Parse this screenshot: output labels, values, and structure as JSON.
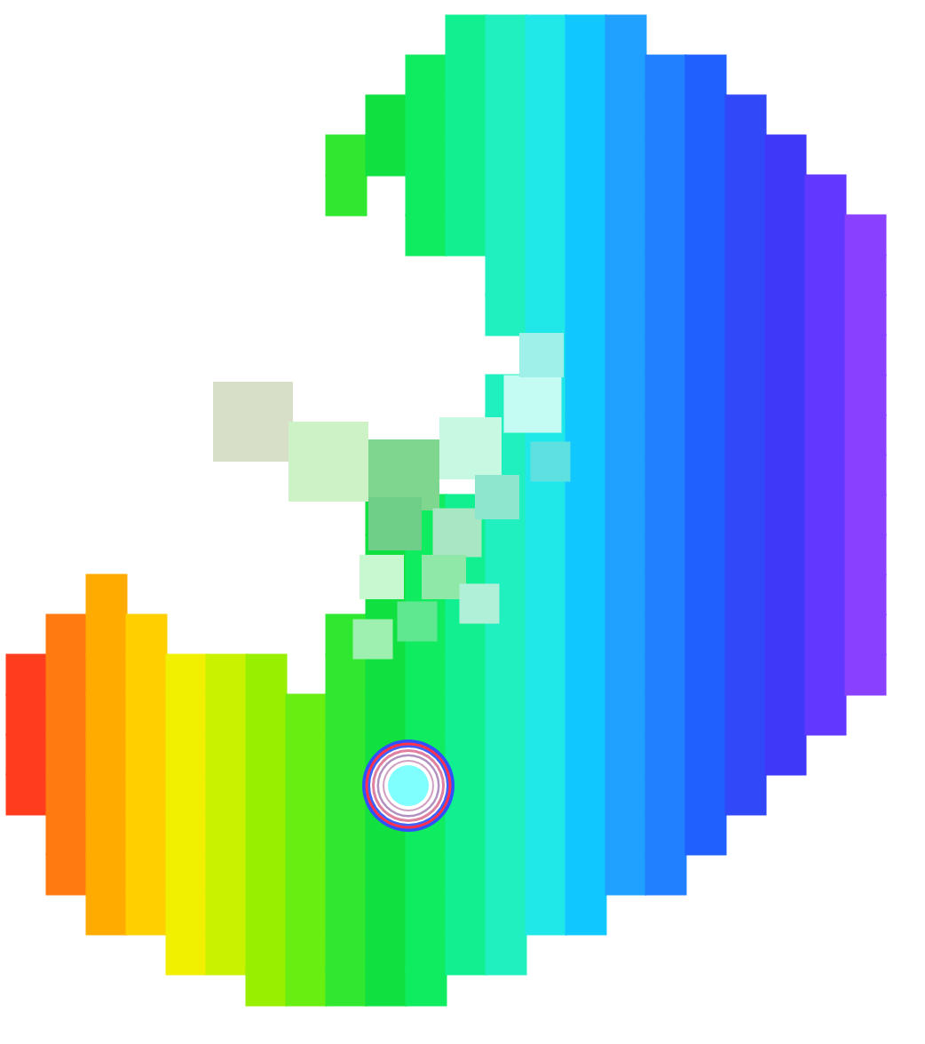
{
  "chart_data": {
    "type": "scatter",
    "marker": "square",
    "tick_labels": false,
    "grid": false,
    "xlim": [
      0,
      1042
    ],
    "ylim": [
      1176,
      0
    ],
    "series": [
      {
        "color": "#ff3c1e",
        "x": [
          30,
          30,
          30,
          30
        ],
        "y": [
          760,
          805,
          850,
          895
        ]
      },
      {
        "color": "#ff7a10",
        "x": [
          75,
          75,
          75,
          75,
          75,
          75,
          75
        ],
        "y": [
          715,
          760,
          805,
          850,
          895,
          940,
          985
        ]
      },
      {
        "color": "#ffab00",
        "x": [
          120,
          120,
          120,
          120,
          120,
          120,
          120,
          120,
          120
        ],
        "y": [
          670,
          715,
          760,
          805,
          850,
          895,
          940,
          985,
          1030
        ]
      },
      {
        "color": "#ffd000",
        "x": [
          165,
          165,
          165,
          165,
          165,
          165,
          165,
          165
        ],
        "y": [
          715,
          760,
          805,
          850,
          895,
          940,
          985,
          1030
        ]
      },
      {
        "color": "#f0f000",
        "x": [
          210,
          210,
          210,
          210,
          210,
          210,
          210,
          210
        ],
        "y": [
          760,
          805,
          850,
          895,
          940,
          985,
          1030,
          1075
        ]
      },
      {
        "color": "#c8f200",
        "x": [
          255,
          255,
          255,
          255,
          255,
          255,
          255,
          255
        ],
        "y": [
          760,
          805,
          850,
          895,
          940,
          985,
          1030,
          1075
        ]
      },
      {
        "color": "#98f000",
        "x": [
          300,
          300,
          300,
          300,
          300,
          300,
          300,
          300,
          300
        ],
        "y": [
          760,
          805,
          850,
          895,
          940,
          985,
          1030,
          1075,
          1110
        ]
      },
      {
        "color": "#68ee10",
        "x": [
          345,
          345,
          345,
          345,
          345,
          345,
          345,
          345
        ],
        "y": [
          805,
          850,
          895,
          940,
          985,
          1030,
          1075,
          1110
        ]
      },
      {
        "color": "#30e830",
        "x": [
          390,
          390,
          390,
          390,
          390,
          390,
          390,
          390,
          390,
          390,
          390,
          390
        ],
        "y": [
          175,
          220,
          715,
          760,
          805,
          850,
          895,
          940,
          985,
          1030,
          1075,
          1110
        ]
      },
      {
        "color": "#10e040",
        "x": [
          435,
          435,
          435,
          435,
          435,
          435,
          435,
          435,
          435,
          435,
          435,
          435,
          435,
          435,
          435
        ],
        "y": [
          130,
          175,
          580,
          625,
          670,
          715,
          760,
          805,
          850,
          895,
          940,
          985,
          1030,
          1075,
          1110
        ]
      },
      {
        "color": "#10ec60",
        "x": [
          480,
          480,
          480,
          480,
          480,
          480,
          480,
          480,
          480,
          480,
          480,
          480,
          480,
          480,
          480,
          480,
          480,
          480
        ],
        "y": [
          85,
          130,
          175,
          220,
          265,
          580,
          625,
          670,
          715,
          760,
          805,
          850,
          895,
          940,
          985,
          1030,
          1075,
          1110
        ]
      },
      {
        "color": "#10f090",
        "x": [
          525,
          525,
          525,
          525,
          525,
          525,
          525,
          525,
          525,
          525,
          525,
          525,
          525,
          525,
          525,
          525,
          525,
          525
        ],
        "y": [
          40,
          85,
          130,
          175,
          220,
          265,
          580,
          625,
          670,
          715,
          760,
          805,
          850,
          895,
          940,
          985,
          1030,
          1075
        ]
      },
      {
        "color": "#20f0c0",
        "x": [
          570,
          570,
          570,
          570,
          570,
          570,
          570,
          570,
          570,
          570,
          570,
          570,
          570,
          570,
          570,
          570,
          570,
          570,
          570,
          570,
          570,
          570,
          570
        ],
        "y": [
          40,
          85,
          130,
          175,
          220,
          265,
          310,
          355,
          445,
          490,
          535,
          580,
          625,
          670,
          715,
          760,
          805,
          850,
          895,
          940,
          985,
          1030,
          1075
        ]
      },
      {
        "color": "#20e8e8",
        "x": [
          615,
          615,
          615,
          615,
          615,
          615,
          615,
          615,
          615,
          615,
          615,
          615,
          615,
          615,
          615,
          615,
          615,
          615,
          615,
          615,
          615,
          615,
          615
        ],
        "y": [
          40,
          85,
          130,
          175,
          220,
          265,
          310,
          355,
          400,
          445,
          490,
          535,
          580,
          625,
          670,
          715,
          760,
          805,
          850,
          895,
          940,
          985,
          1030
        ]
      },
      {
        "color": "#10c8ff",
        "x": [
          660,
          660,
          660,
          660,
          660,
          660,
          660,
          660,
          660,
          660,
          660,
          660,
          660,
          660,
          660,
          660,
          660,
          660,
          660,
          660,
          660,
          660,
          660
        ],
        "y": [
          40,
          85,
          130,
          175,
          220,
          265,
          310,
          355,
          400,
          445,
          490,
          535,
          580,
          625,
          670,
          715,
          760,
          805,
          850,
          895,
          940,
          985,
          1030
        ]
      },
      {
        "color": "#20a0ff",
        "x": [
          705,
          705,
          705,
          705,
          705,
          705,
          705,
          705,
          705,
          705,
          705,
          705,
          705,
          705,
          705,
          705,
          705,
          705,
          705,
          705,
          705,
          705
        ],
        "y": [
          40,
          85,
          130,
          175,
          220,
          265,
          310,
          355,
          400,
          445,
          490,
          535,
          580,
          625,
          670,
          715,
          760,
          805,
          850,
          895,
          940,
          985
        ]
      },
      {
        "color": "#2080ff",
        "x": [
          750,
          750,
          750,
          750,
          750,
          750,
          750,
          750,
          750,
          750,
          750,
          750,
          750,
          750,
          750,
          750,
          750,
          750,
          750,
          750,
          750
        ],
        "y": [
          85,
          130,
          175,
          220,
          265,
          310,
          355,
          400,
          445,
          490,
          535,
          580,
          625,
          670,
          715,
          760,
          805,
          850,
          895,
          940,
          985
        ]
      },
      {
        "color": "#2060ff",
        "x": [
          795,
          795,
          795,
          795,
          795,
          795,
          795,
          795,
          795,
          795,
          795,
          795,
          795,
          795,
          795,
          795,
          795,
          795,
          795,
          795
        ],
        "y": [
          85,
          130,
          175,
          220,
          265,
          310,
          355,
          400,
          445,
          490,
          535,
          580,
          625,
          670,
          715,
          760,
          805,
          850,
          895,
          940
        ]
      },
      {
        "color": "#3048f8",
        "x": [
          840,
          840,
          840,
          840,
          840,
          840,
          840,
          840,
          840,
          840,
          840,
          840,
          840,
          840,
          840,
          840,
          840,
          840
        ],
        "y": [
          130,
          175,
          220,
          265,
          310,
          355,
          400,
          445,
          490,
          535,
          580,
          625,
          670,
          715,
          760,
          805,
          850,
          895
        ]
      },
      {
        "color": "#4038f8",
        "x": [
          885,
          885,
          885,
          885,
          885,
          885,
          885,
          885,
          885,
          885,
          885,
          885,
          885,
          885,
          885,
          885
        ],
        "y": [
          175,
          220,
          265,
          310,
          355,
          400,
          445,
          490,
          535,
          580,
          625,
          670,
          715,
          760,
          805,
          850
        ]
      },
      {
        "color": "#6038ff",
        "x": [
          930,
          930,
          930,
          930,
          930,
          930,
          930,
          930,
          930,
          930,
          930,
          930,
          930,
          930
        ],
        "y": [
          220,
          265,
          310,
          355,
          400,
          445,
          490,
          535,
          580,
          625,
          670,
          715,
          760,
          805
        ]
      },
      {
        "color": "#8a40ff",
        "x": [
          975,
          975,
          975,
          975,
          975,
          975,
          975,
          975,
          975,
          975,
          975,
          975
        ],
        "y": [
          265,
          310,
          355,
          400,
          445,
          490,
          535,
          580,
          625,
          670,
          715,
          760
        ]
      },
      {
        "colors": [
          "#d8dfc8",
          "#cdf2c6",
          "#7fd68f",
          "#c6f8e2",
          "#c4fbf2",
          "#6fcf88",
          "#a8e6c4",
          "#c8f8d0",
          "#8fe8a8",
          "#8ee6cf",
          "#5fe0e0",
          "#9ff0e8",
          "#9ef0b0",
          "#60e890",
          "#b0f0d8"
        ],
        "sizes": [
          90,
          90,
          80,
          70,
          65,
          60,
          55,
          50,
          50,
          50,
          45,
          50,
          45,
          45,
          45
        ],
        "x": [
          285,
          370,
          455,
          530,
          600,
          445,
          515,
          430,
          500,
          560,
          620,
          610,
          420,
          470,
          540
        ],
        "y": [
          475,
          520,
          535,
          505,
          455,
          590,
          600,
          650,
          650,
          560,
          520,
          400,
          720,
          700,
          680
        ]
      },
      {
        "marker": "circle",
        "color": "#80ffff",
        "x": [
          460
        ],
        "y": [
          885
        ]
      }
    ]
  }
}
